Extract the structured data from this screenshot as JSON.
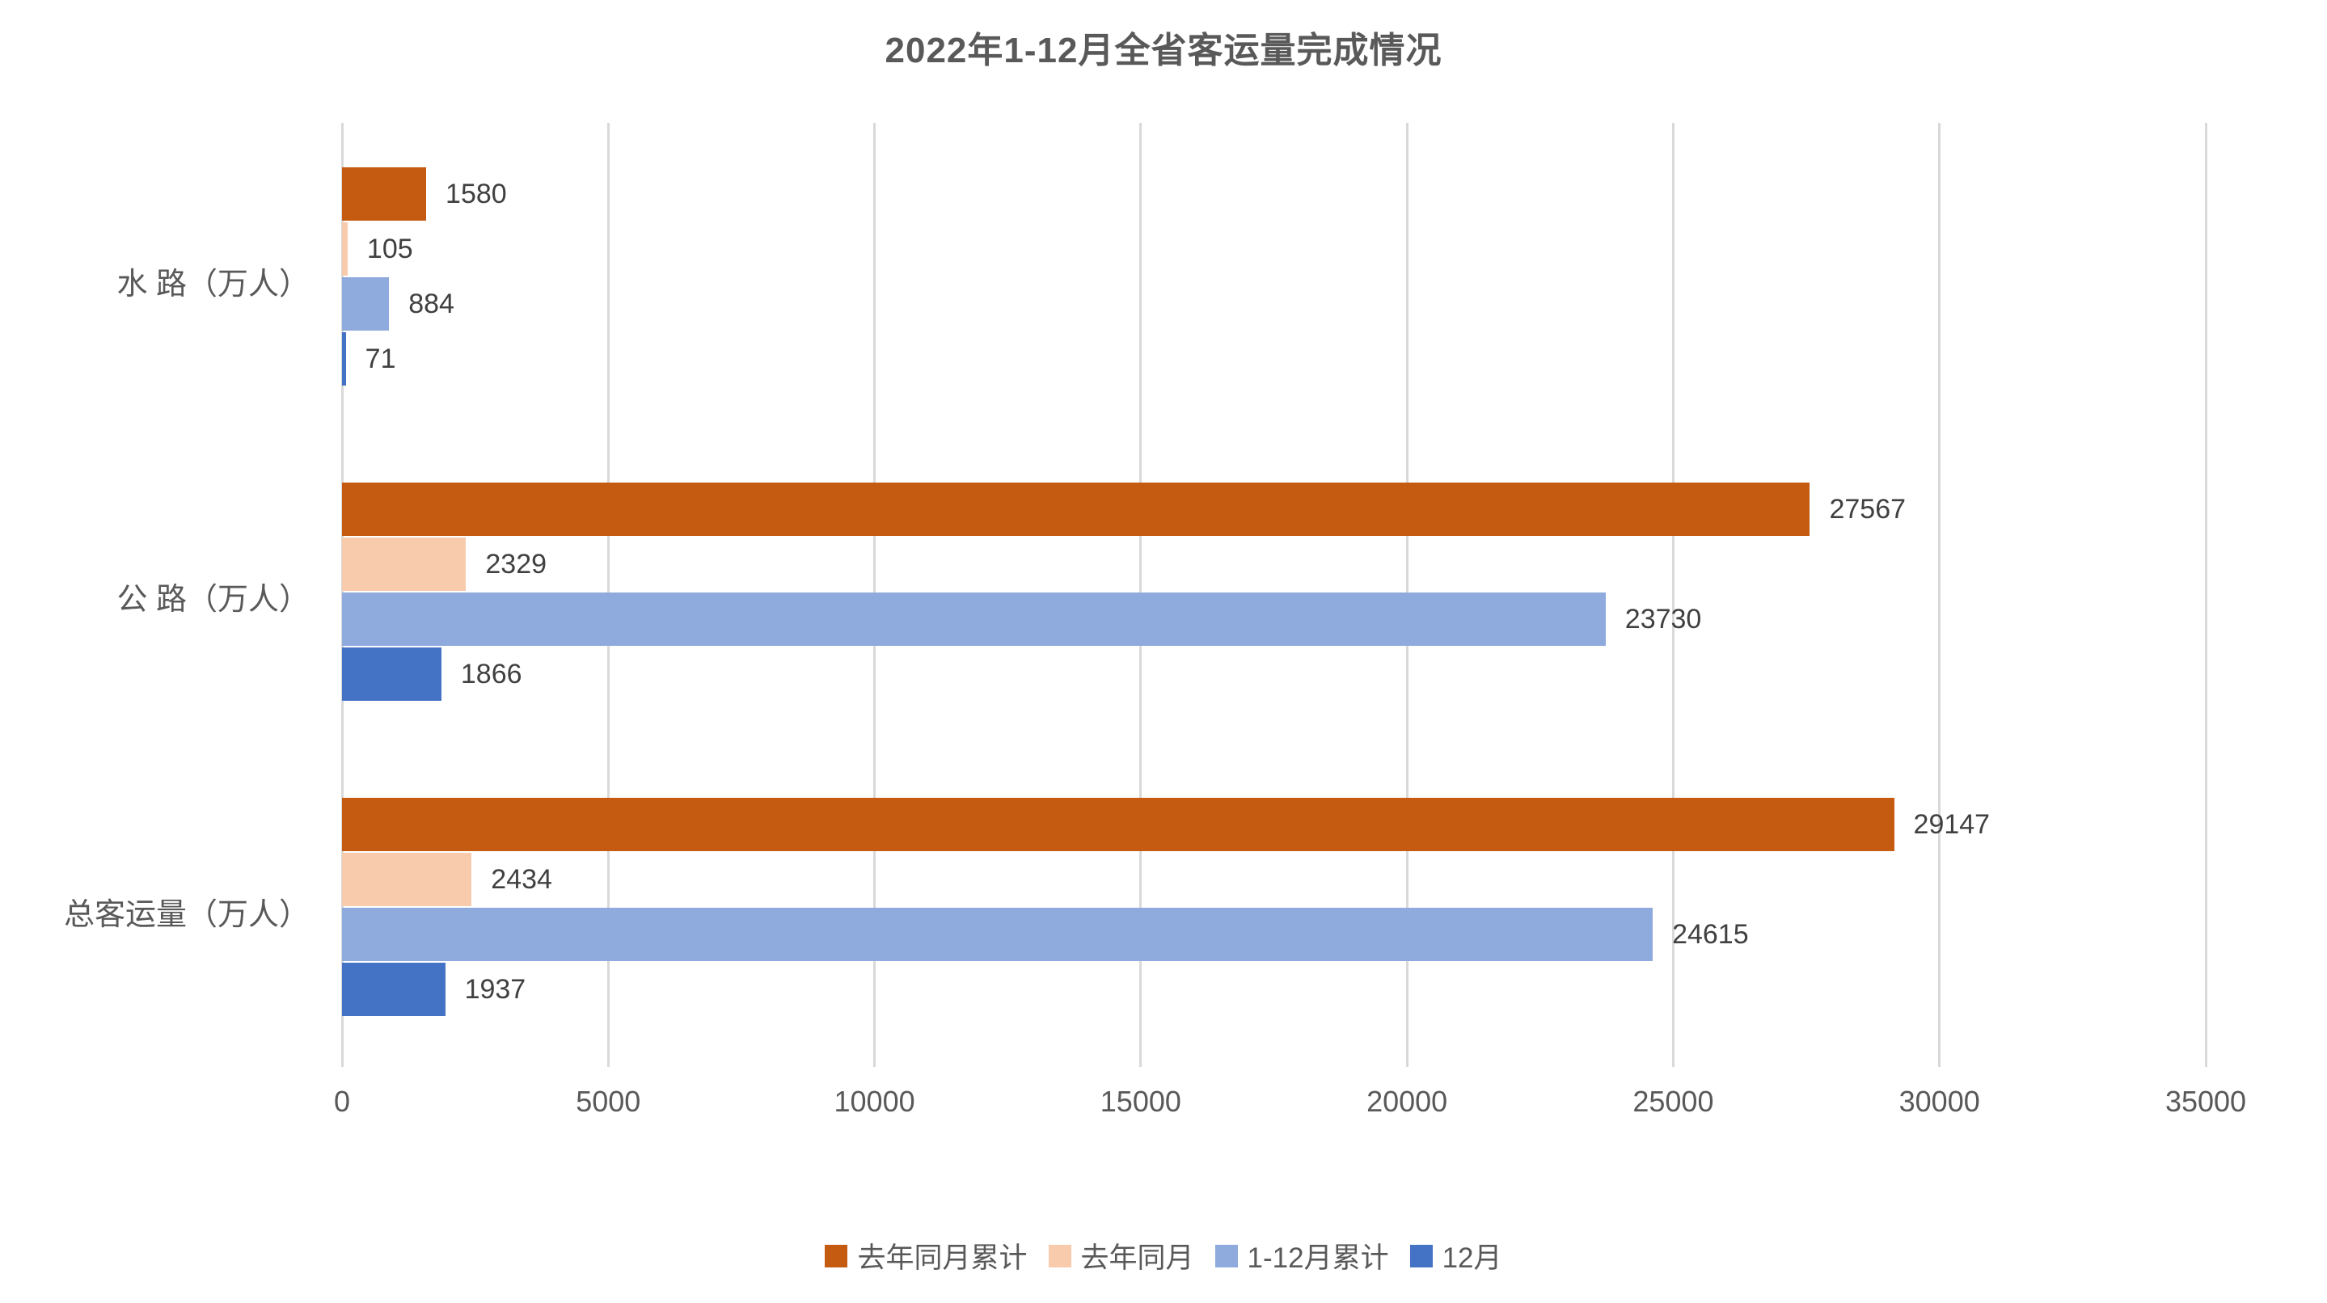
{
  "title": "2022年1-12月全省客运量完成情况",
  "chart_data": {
    "type": "bar",
    "orientation": "horizontal",
    "title": "2022年1-12月全省客运量完成情况",
    "categories": [
      "水 路（万人）",
      "公 路（万人）",
      "总客运量（万人）"
    ],
    "series": [
      {
        "name": "去年同月累计",
        "color": "#C55A11",
        "values": [
          1580,
          27567,
          29147
        ]
      },
      {
        "name": "去年同月",
        "color": "#F8CBAD",
        "values": [
          105,
          2329,
          2434
        ]
      },
      {
        "name": "1-12月累计",
        "color": "#8FAADC",
        "values": [
          884,
          23730,
          24615
        ]
      },
      {
        "name": "12月",
        "color": "#4472C4",
        "values": [
          71,
          1866,
          1937
        ]
      }
    ],
    "xlim": [
      0,
      35000
    ],
    "x_ticks": [
      0,
      5000,
      10000,
      15000,
      20000,
      25000,
      30000,
      35000
    ],
    "grid": true,
    "legend_position": "bottom",
    "gridline_color": "#D9D9D9",
    "axis_text_color": "#595959",
    "data_label_color": "#404040",
    "background_color": "#FFFFFF"
  }
}
